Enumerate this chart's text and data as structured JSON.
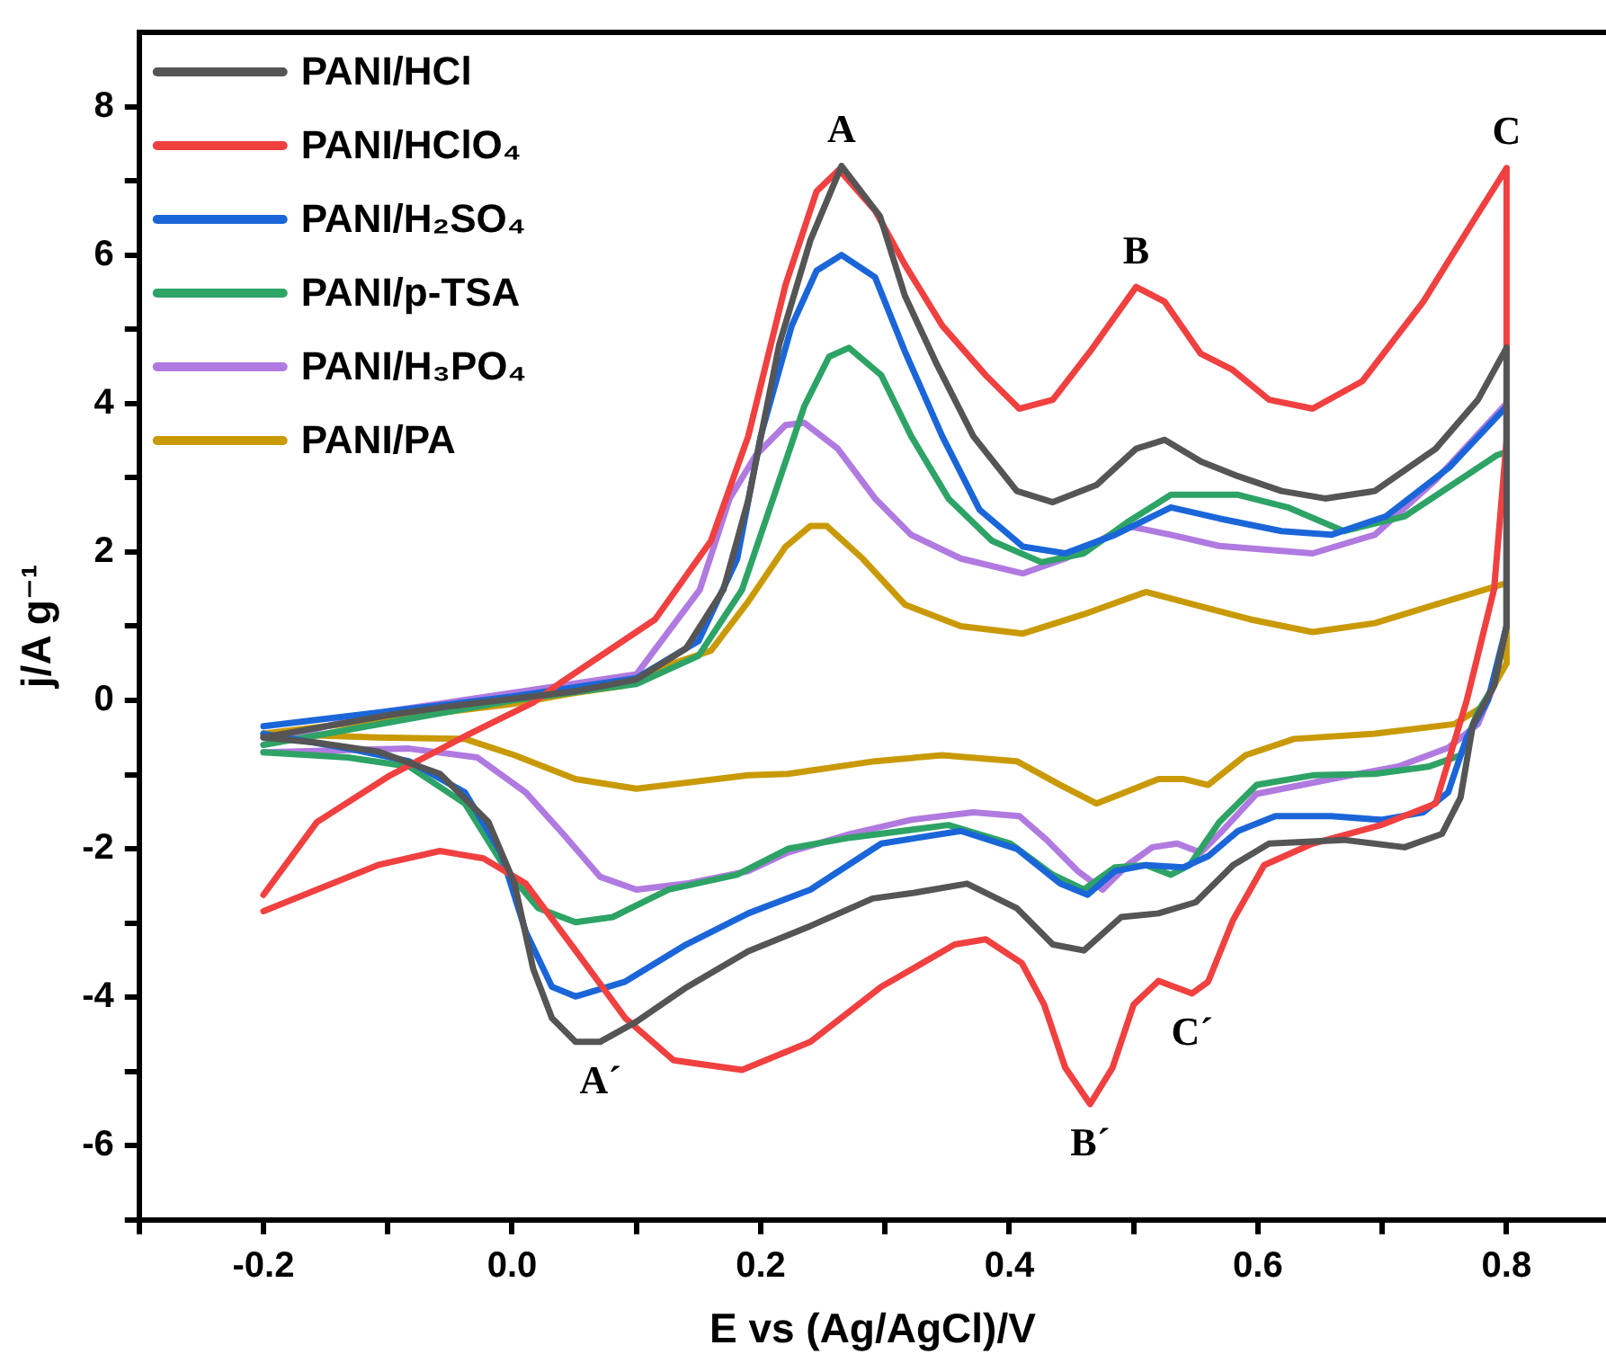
{
  "chart_data": {
    "type": "line",
    "xlabel": "E vs (Ag/AgCl)/V",
    "ylabel": "j/A g⁻¹",
    "xlim": [
      -0.3,
      0.88
    ],
    "ylim": [
      -7,
      9
    ],
    "xticks": [
      {
        "value": -0.3,
        "label": null
      },
      -0.2,
      {
        "value": -0.1,
        "label": null
      },
      {
        "value": 0,
        "label": "0.0"
      },
      {
        "value": 0.1,
        "label": null
      },
      0.2,
      {
        "value": 0.3,
        "label": null
      },
      0.4,
      {
        "value": 0.5,
        "label": null
      },
      0.6,
      {
        "value": 0.7,
        "label": null
      },
      0.8
    ],
    "yticks": [
      {
        "value": -7,
        "label": null
      },
      -6,
      {
        "value": -5,
        "label": null
      },
      -4,
      {
        "value": -3,
        "label": null
      },
      -2,
      {
        "value": -1,
        "label": null
      },
      0,
      {
        "value": 1,
        "label": null
      },
      2,
      {
        "value": 3,
        "label": null
      },
      4,
      {
        "value": 5,
        "label": null
      },
      6,
      {
        "value": 7,
        "label": null
      },
      8
    ],
    "grid": false,
    "legend": "top left",
    "line_style": "solid",
    "annotations": [
      {
        "text": "A",
        "x": 0.265,
        "y": 7.2
      },
      {
        "text": "B",
        "x": 0.502,
        "y": 5.57
      },
      {
        "text": "C",
        "x": 0.8,
        "y": 7.17
      },
      {
        "text": "A´",
        "x": 0.071,
        "y": -4.6
      },
      {
        "text": "B´",
        "x": 0.465,
        "y": -5.44
      },
      {
        "text": "C´",
        "x": 0.547,
        "y": -3.95
      }
    ],
    "series": [
      {
        "name": "PANI/HCl",
        "color": "#555555",
        "x": [
          -0.2,
          -0.15,
          -0.1,
          -0.05,
          0,
          0.05,
          0.1,
          0.14,
          0.17,
          0.19,
          0.215,
          0.24,
          0.265,
          0.296,
          0.316,
          0.341,
          0.371,
          0.406,
          0.435,
          0.47,
          0.502,
          0.525,
          0.554,
          0.584,
          0.619,
          0.654,
          0.694,
          0.743,
          0.777,
          0.8
        ],
        "values": [
          -0.5,
          -0.35,
          -0.2,
          -0.08,
          0.02,
          0.12,
          0.28,
          0.7,
          1.49,
          2.7,
          4.8,
          6.2,
          7.2,
          6.52,
          5.45,
          4.55,
          3.56,
          2.82,
          2.67,
          2.9,
          3.39,
          3.51,
          3.22,
          3.02,
          2.82,
          2.72,
          2.82,
          3.39,
          4.05,
          4.75
        ]
      },
      {
        "color": "#555555",
        "x": [
          0.8,
          0.8,
          0.79,
          0.773,
          0.763,
          0.748,
          0.718,
          0.669,
          0.609,
          0.58,
          0.55,
          0.52,
          0.49,
          0.46,
          0.435,
          0.406,
          0.366,
          0.321,
          0.29,
          0.24,
          0.19,
          0.14,
          0.1,
          0.071,
          0.051,
          0.032,
          0.017,
          0.002,
          -0.019,
          -0.058,
          -0.108,
          -0.157,
          -0.2
        ],
        "values": [
          4.75,
          1.0,
          0.2,
          -0.32,
          -1.31,
          -1.8,
          -1.98,
          -1.88,
          -1.93,
          -2.22,
          -2.72,
          -2.87,
          -2.92,
          -3.37,
          -3.29,
          -2.8,
          -2.47,
          -2.6,
          -2.67,
          -3.04,
          -3.38,
          -3.87,
          -4.33,
          -4.6,
          -4.6,
          -4.28,
          -3.62,
          -2.47,
          -1.64,
          -0.99,
          -0.69,
          -0.57,
          -0.5
        ]
      },
      {
        "name": "PANI/HClO₄",
        "color": "#f04040",
        "x": [
          -0.2,
          -0.157,
          -0.098,
          -0.034,
          0.017,
          0.04,
          0.115,
          0.16,
          0.19,
          0.22,
          0.245,
          0.263,
          0.292,
          0.316,
          0.346,
          0.381,
          0.408,
          0.435,
          0.465,
          0.502,
          0.525,
          0.554,
          0.579,
          0.609,
          0.644,
          0.684,
          0.733,
          0.773,
          0.8
        ],
        "values": [
          -2.62,
          -1.64,
          -1.01,
          -0.45,
          -0.03,
          0.25,
          1.09,
          2.15,
          3.56,
          5.6,
          6.86,
          7.15,
          6.6,
          5.87,
          5.05,
          4.38,
          3.93,
          4.05,
          4.7,
          5.57,
          5.37,
          4.67,
          4.46,
          4.05,
          3.93,
          4.3,
          5.37,
          6.45,
          7.17
        ]
      },
      {
        "color": "#f04040",
        "x": [
          0.8,
          0.8,
          0.79,
          0.768,
          0.743,
          0.699,
          0.644,
          0.605,
          0.58,
          0.56,
          0.547,
          0.52,
          0.5,
          0.483,
          0.465,
          0.445,
          0.428,
          0.41,
          0.381,
          0.356,
          0.297,
          0.24,
          0.185,
          0.13,
          0.091,
          0.051,
          0.011,
          -0.023,
          -0.058,
          -0.108,
          -0.157,
          -0.2
        ],
        "values": [
          7.17,
          3.5,
          1.5,
          0,
          -1.39,
          -1.68,
          -1.93,
          -2.22,
          -2.96,
          -3.79,
          -3.95,
          -3.78,
          -4.1,
          -4.95,
          -5.44,
          -4.95,
          -4.1,
          -3.54,
          -3.22,
          -3.29,
          -3.86,
          -4.6,
          -4.98,
          -4.85,
          -4.28,
          -3.37,
          -2.47,
          -2.13,
          -2.03,
          -2.22,
          -2.55,
          -2.84
        ]
      },
      {
        "name": "PANI/H₂SO₄",
        "color": "#1a66d9",
        "x": [
          -0.2,
          -0.1,
          0,
          0.1,
          0.15,
          0.181,
          0.2,
          0.225,
          0.245,
          0.265,
          0.292,
          0.316,
          0.346,
          0.376,
          0.411,
          0.445,
          0.485,
          0.53,
          0.569,
          0.619,
          0.659,
          0.703,
          0.754,
          0.8
        ],
        "values": [
          -0.35,
          -0.15,
          0.05,
          0.3,
          0.8,
          1.9,
          3.56,
          5.05,
          5.79,
          6.0,
          5.7,
          4.7,
          3.56,
          2.57,
          2.07,
          1.98,
          2.23,
          2.6,
          2.45,
          2.28,
          2.23,
          2.48,
          3.14,
          3.96
        ]
      },
      {
        "color": "#1a66d9",
        "x": [
          0.8,
          0.8,
          0.785,
          0.768,
          0.753,
          0.733,
          0.699,
          0.659,
          0.614,
          0.584,
          0.56,
          0.54,
          0.51,
          0.485,
          0.463,
          0.441,
          0.406,
          0.361,
          0.297,
          0.24,
          0.19,
          0.14,
          0.091,
          0.051,
          0.032,
          0.011,
          -0.009,
          -0.038,
          -0.083,
          -0.132,
          -0.2
        ],
        "values": [
          3.96,
          1.0,
          0,
          -0.5,
          -1.24,
          -1.51,
          -1.61,
          -1.56,
          -1.56,
          -1.76,
          -2.1,
          -2.25,
          -2.22,
          -2.3,
          -2.62,
          -2.47,
          -2.0,
          -1.76,
          -1.93,
          -2.55,
          -2.87,
          -3.29,
          -3.79,
          -3.99,
          -3.86,
          -3.12,
          -2.05,
          -1.24,
          -0.82,
          -0.65,
          -0.45
        ]
      },
      {
        "name": "PANI/p-TSA",
        "color": "#2ea366",
        "x": [
          -0.2,
          -0.1,
          0,
          0.1,
          0.15,
          0.185,
          0.21,
          0.235,
          0.255,
          0.271,
          0.297,
          0.321,
          0.351,
          0.386,
          0.426,
          0.46,
          0.495,
          0.53,
          0.584,
          0.624,
          0.669,
          0.718,
          0.792,
          0.8
        ],
        "values": [
          -0.6,
          -0.3,
          0.0,
          0.22,
          0.6,
          1.49,
          2.72,
          3.96,
          4.63,
          4.75,
          4.38,
          3.56,
          2.72,
          2.15,
          1.86,
          1.98,
          2.4,
          2.77,
          2.77,
          2.6,
          2.28,
          2.48,
          3.3,
          3.35
        ]
      },
      {
        "color": "#2ea366",
        "x": [
          0.8,
          0.8,
          0.79,
          0.777,
          0.763,
          0.738,
          0.694,
          0.644,
          0.599,
          0.569,
          0.545,
          0.53,
          0.51,
          0.485,
          0.46,
          0.435,
          0.401,
          0.351,
          0.272,
          0.222,
          0.181,
          0.126,
          0.081,
          0.051,
          0.021,
          -0.004,
          -0.038,
          -0.083,
          -0.132,
          -0.2
        ],
        "values": [
          3.35,
          1.0,
          0.2,
          -0.15,
          -0.74,
          -0.89,
          -0.99,
          -1.01,
          -1.14,
          -1.64,
          -2.22,
          -2.35,
          -2.22,
          -2.25,
          -2.55,
          -2.35,
          -1.93,
          -1.68,
          -1.85,
          -2.0,
          -2.35,
          -2.55,
          -2.92,
          -2.99,
          -2.8,
          -2.3,
          -1.39,
          -0.89,
          -0.77,
          -0.7
        ]
      },
      {
        "name": "PANI/H₃PO₄",
        "color": "#b07ae0",
        "x": [
          -0.2,
          -0.15,
          -0.1,
          0,
          0.1,
          0.151,
          0.175,
          0.196,
          0.22,
          0.235,
          0.262,
          0.292,
          0.321,
          0.361,
          0.411,
          0.445,
          0.495,
          0.53,
          0.569,
          0.644,
          0.694,
          0.743,
          0.8
        ],
        "values": [
          -0.6,
          -0.35,
          -0.15,
          0.1,
          0.35,
          1.49,
          2.72,
          3.3,
          3.71,
          3.74,
          3.39,
          2.72,
          2.23,
          1.91,
          1.71,
          1.91,
          2.35,
          2.23,
          2.08,
          1.98,
          2.23,
          2.97,
          4.0
        ]
      },
      {
        "color": "#b07ae0",
        "x": [
          0.8,
          0.8,
          0.79,
          0.777,
          0.753,
          0.713,
          0.659,
          0.599,
          0.569,
          0.554,
          0.535,
          0.515,
          0.495,
          0.475,
          0.455,
          0.43,
          0.408,
          0.371,
          0.321,
          0.272,
          0.222,
          0.19,
          0.14,
          0.1,
          0.071,
          0.041,
          0.011,
          -0.028,
          -0.083,
          -0.2
        ],
        "values": [
          4.0,
          1.0,
          0.2,
          -0.32,
          -0.64,
          -0.89,
          -1.06,
          -1.26,
          -1.8,
          -2.05,
          -1.93,
          -1.98,
          -2.22,
          -2.55,
          -2.3,
          -1.88,
          -1.56,
          -1.51,
          -1.61,
          -1.8,
          -2.05,
          -2.3,
          -2.47,
          -2.55,
          -2.38,
          -1.8,
          -1.24,
          -0.77,
          -0.65,
          -0.7
        ]
      },
      {
        "name": "PANI/PA",
        "color": "#c99a06",
        "x": [
          -0.2,
          -0.1,
          0,
          0.05,
          0.091,
          0.13,
          0.16,
          0.19,
          0.22,
          0.24,
          0.253,
          0.282,
          0.316,
          0.361,
          0.411,
          0.46,
          0.51,
          0.56,
          0.594,
          0.644,
          0.694,
          0.743,
          0.8
        ],
        "values": [
          -0.45,
          -0.25,
          -0.05,
          0.1,
          0.2,
          0.5,
          0.67,
          1.33,
          2.07,
          2.35,
          2.35,
          1.91,
          1.29,
          1.0,
          0.9,
          1.16,
          1.46,
          1.24,
          1.09,
          0.92,
          1.04,
          1.29,
          1.58
        ]
      },
      {
        "color": "#c99a06",
        "x": [
          0.8,
          0.8,
          0.79,
          0.782,
          0.758,
          0.694,
          0.629,
          0.59,
          0.56,
          0.54,
          0.52,
          0.49,
          0.47,
          0.441,
          0.406,
          0.346,
          0.292,
          0.222,
          0.19,
          0.1,
          0.051,
          0.002,
          -0.038,
          -0.108,
          -0.2
        ],
        "values": [
          1.58,
          0.5,
          0.2,
          -0.07,
          -0.32,
          -0.45,
          -0.52,
          -0.74,
          -1.14,
          -1.06,
          -1.06,
          -1.26,
          -1.39,
          -1.14,
          -0.82,
          -0.74,
          -0.82,
          -0.99,
          -1.01,
          -1.19,
          -1.06,
          -0.74,
          -0.52,
          -0.5,
          -0.45
        ]
      }
    ]
  }
}
